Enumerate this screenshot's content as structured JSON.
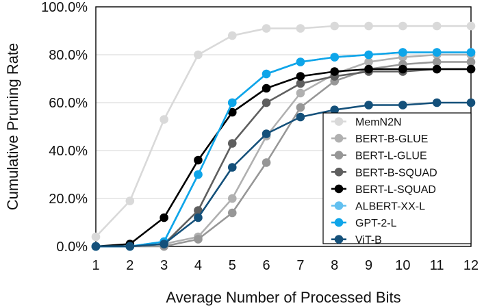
{
  "chart_data": {
    "type": "line",
    "title": "",
    "xlabel": "Average Number of Processed Bits",
    "ylabel": "Cumulative Pruning Rate",
    "x": [
      1,
      2,
      3,
      4,
      5,
      6,
      7,
      8,
      9,
      10,
      11,
      12
    ],
    "xlim": [
      1,
      12
    ],
    "ylim": [
      0,
      100
    ],
    "y_ticks": [
      0,
      20,
      40,
      60,
      80,
      100
    ],
    "y_tick_labels": [
      "0.0%",
      "20.0%",
      "40.0%",
      "60.0%",
      "80.0%",
      "100.0%"
    ],
    "x_tick_labels": [
      "1",
      "2",
      "3",
      "4",
      "5",
      "6",
      "7",
      "8",
      "9",
      "10",
      "11",
      "12"
    ],
    "grid": "horizontal",
    "legend_position": "bottom-right",
    "series": [
      {
        "name": "MemN2N",
        "color": "#d9d9d9",
        "values": [
          4,
          19,
          53,
          80,
          88,
          91,
          91,
          92,
          92,
          92,
          92,
          92
        ]
      },
      {
        "name": "BERT-B-GLUE",
        "color": "#b0b0b0",
        "values": [
          0,
          0,
          1,
          4,
          20,
          46,
          64,
          72,
          77,
          79,
          80,
          80
        ]
      },
      {
        "name": "BERT-L-GLUE",
        "color": "#979797",
        "values": [
          0,
          0,
          0,
          3,
          14,
          35,
          58,
          69,
          74,
          76,
          77,
          77
        ]
      },
      {
        "name": "BERT-B-SQUAD",
        "color": "#5f5f5f",
        "values": [
          0,
          0,
          1,
          15,
          43,
          60,
          68,
          71,
          73,
          73,
          74,
          74
        ]
      },
      {
        "name": "BERT-L-SQUAD",
        "color": "#000000",
        "values": [
          0,
          1,
          12,
          36,
          56,
          66,
          71,
          73,
          74,
          74,
          74,
          74
        ]
      },
      {
        "name": "ALBERT-XX-L",
        "color": "#62c0f0",
        "values": [
          0,
          0,
          2,
          30,
          60,
          72,
          77,
          79,
          80,
          81,
          81,
          81
        ]
      },
      {
        "name": "GPT-2-L",
        "color": "#0ea5e9",
        "values": [
          0,
          0,
          2,
          30,
          60,
          72,
          77,
          79,
          80,
          81,
          81,
          81
        ]
      },
      {
        "name": "ViT-B",
        "color": "#14507a",
        "values": [
          0,
          0,
          1,
          12,
          33,
          47,
          54,
          57,
          59,
          59,
          60,
          60
        ]
      }
    ]
  }
}
